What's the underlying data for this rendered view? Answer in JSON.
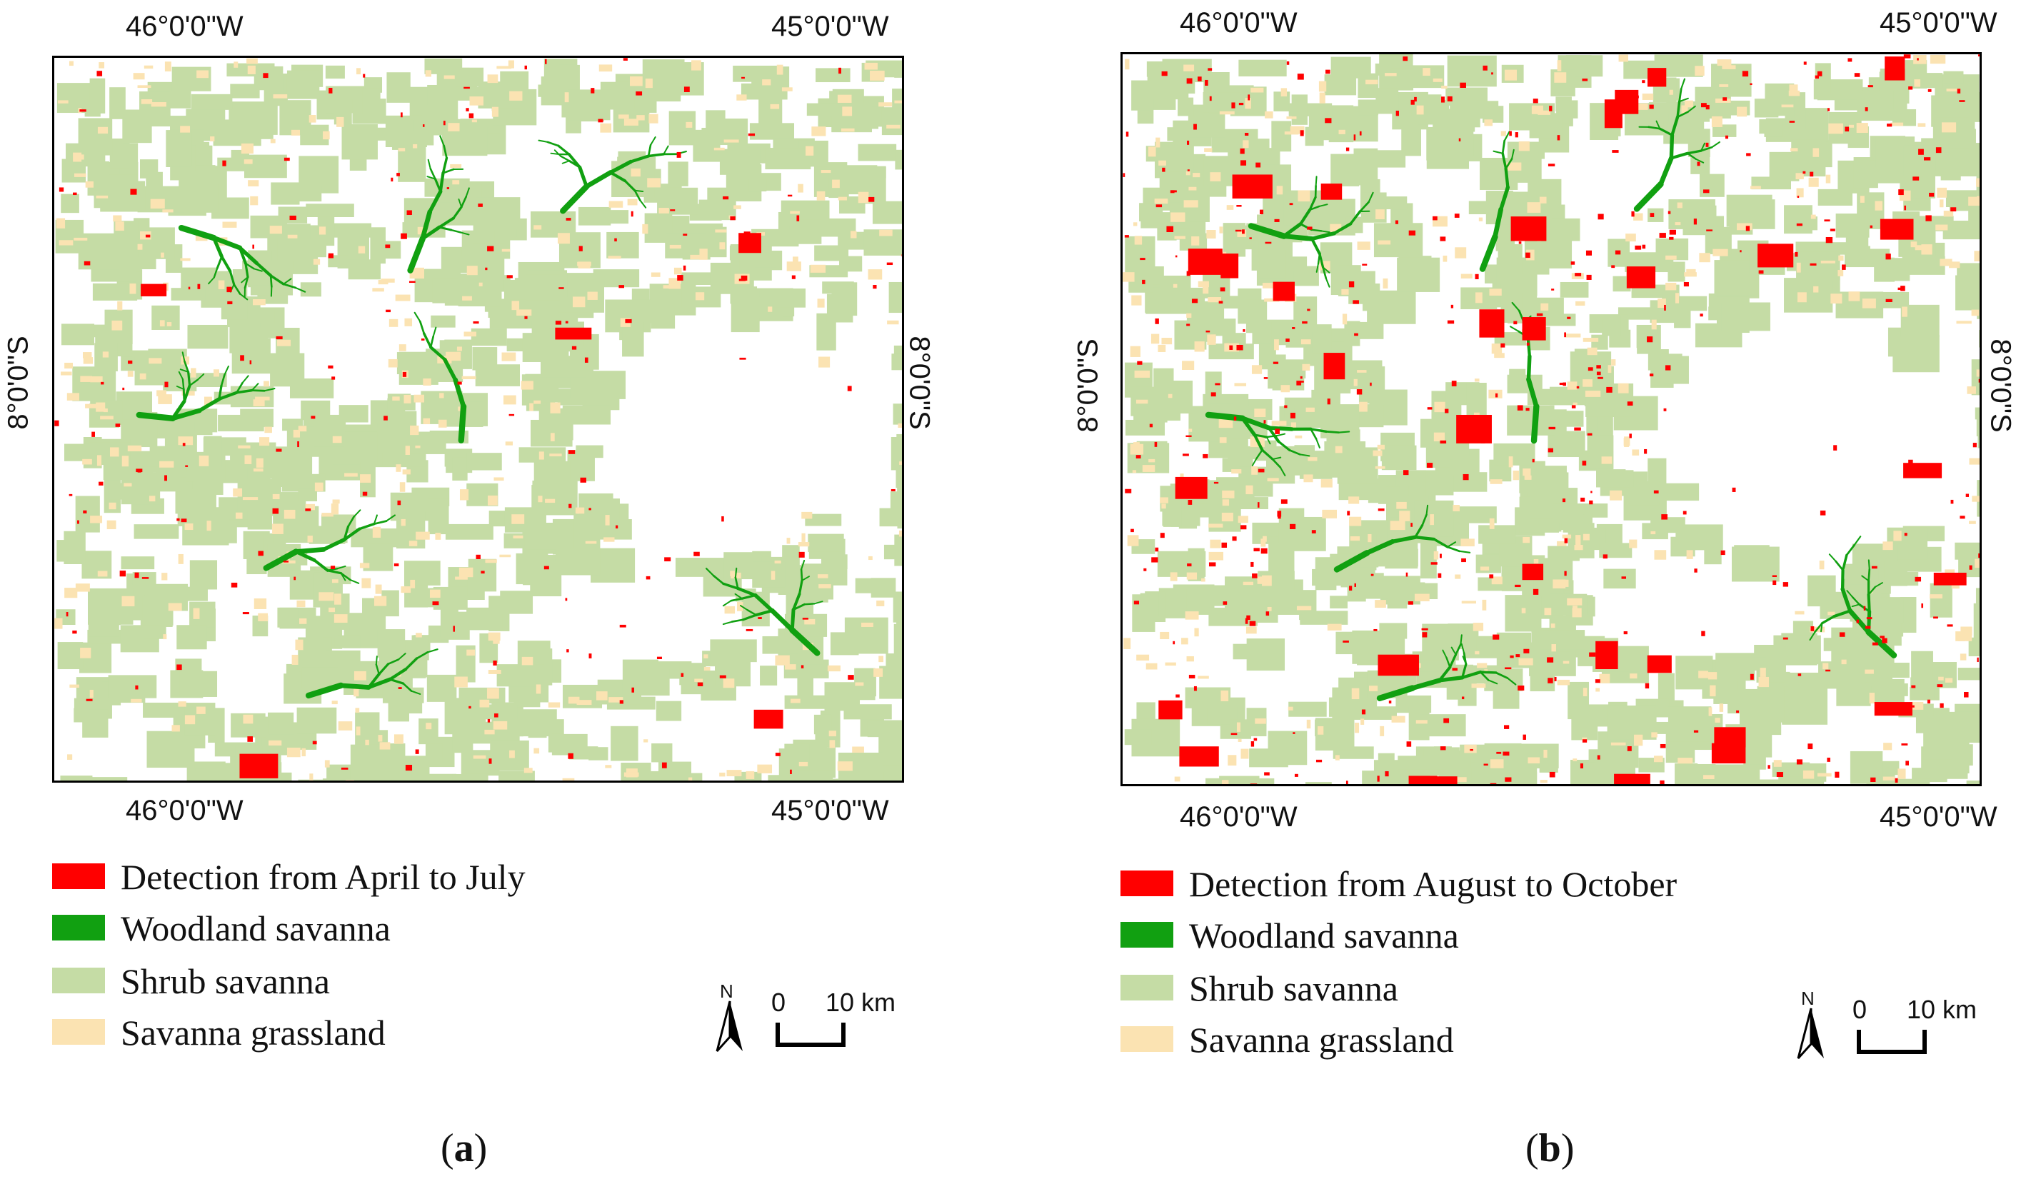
{
  "colors": {
    "detection": "#ff0000",
    "woodland": "#11a011",
    "shrub": "#c5dca5",
    "grassland": "#fbe3b2",
    "background": "#ffffff"
  },
  "panels": [
    {
      "label_letter": "a",
      "coords": {
        "top_left": "46°0'0\"W",
        "top_right": "45°0'0\"W",
        "bottom_left": "46°0'0\"W",
        "bottom_right": "45°0'0\"W",
        "left": "8°0'0\"S",
        "right": "8°0'0\"S"
      },
      "legend": [
        {
          "label": "Detection from April to July",
          "color_key": "detection"
        },
        {
          "label": "Woodland savanna",
          "color_key": "woodland"
        },
        {
          "label": "Shrub savanna",
          "color_key": "shrub"
        },
        {
          "label": "Savanna grassland",
          "color_key": "grassland"
        }
      ],
      "north_label": "N",
      "scale": {
        "start": "0",
        "end": "10 km"
      }
    },
    {
      "label_letter": "b",
      "coords": {
        "top_left": "46°0'0\"W",
        "top_right": "45°0'0\"W",
        "bottom_left": "46°0'0\"W",
        "bottom_right": "45°0'0\"W",
        "left": "8°0'0\"S",
        "right": "8°0'0\"S"
      },
      "legend": [
        {
          "label": "Detection from August to October",
          "color_key": "detection"
        },
        {
          "label": "Woodland savanna",
          "color_key": "woodland"
        },
        {
          "label": "Shrub savanna",
          "color_key": "shrub"
        },
        {
          "label": "Savanna grassland",
          "color_key": "grassland"
        }
      ],
      "north_label": "N",
      "scale": {
        "start": "0",
        "end": "10 km"
      }
    }
  ]
}
